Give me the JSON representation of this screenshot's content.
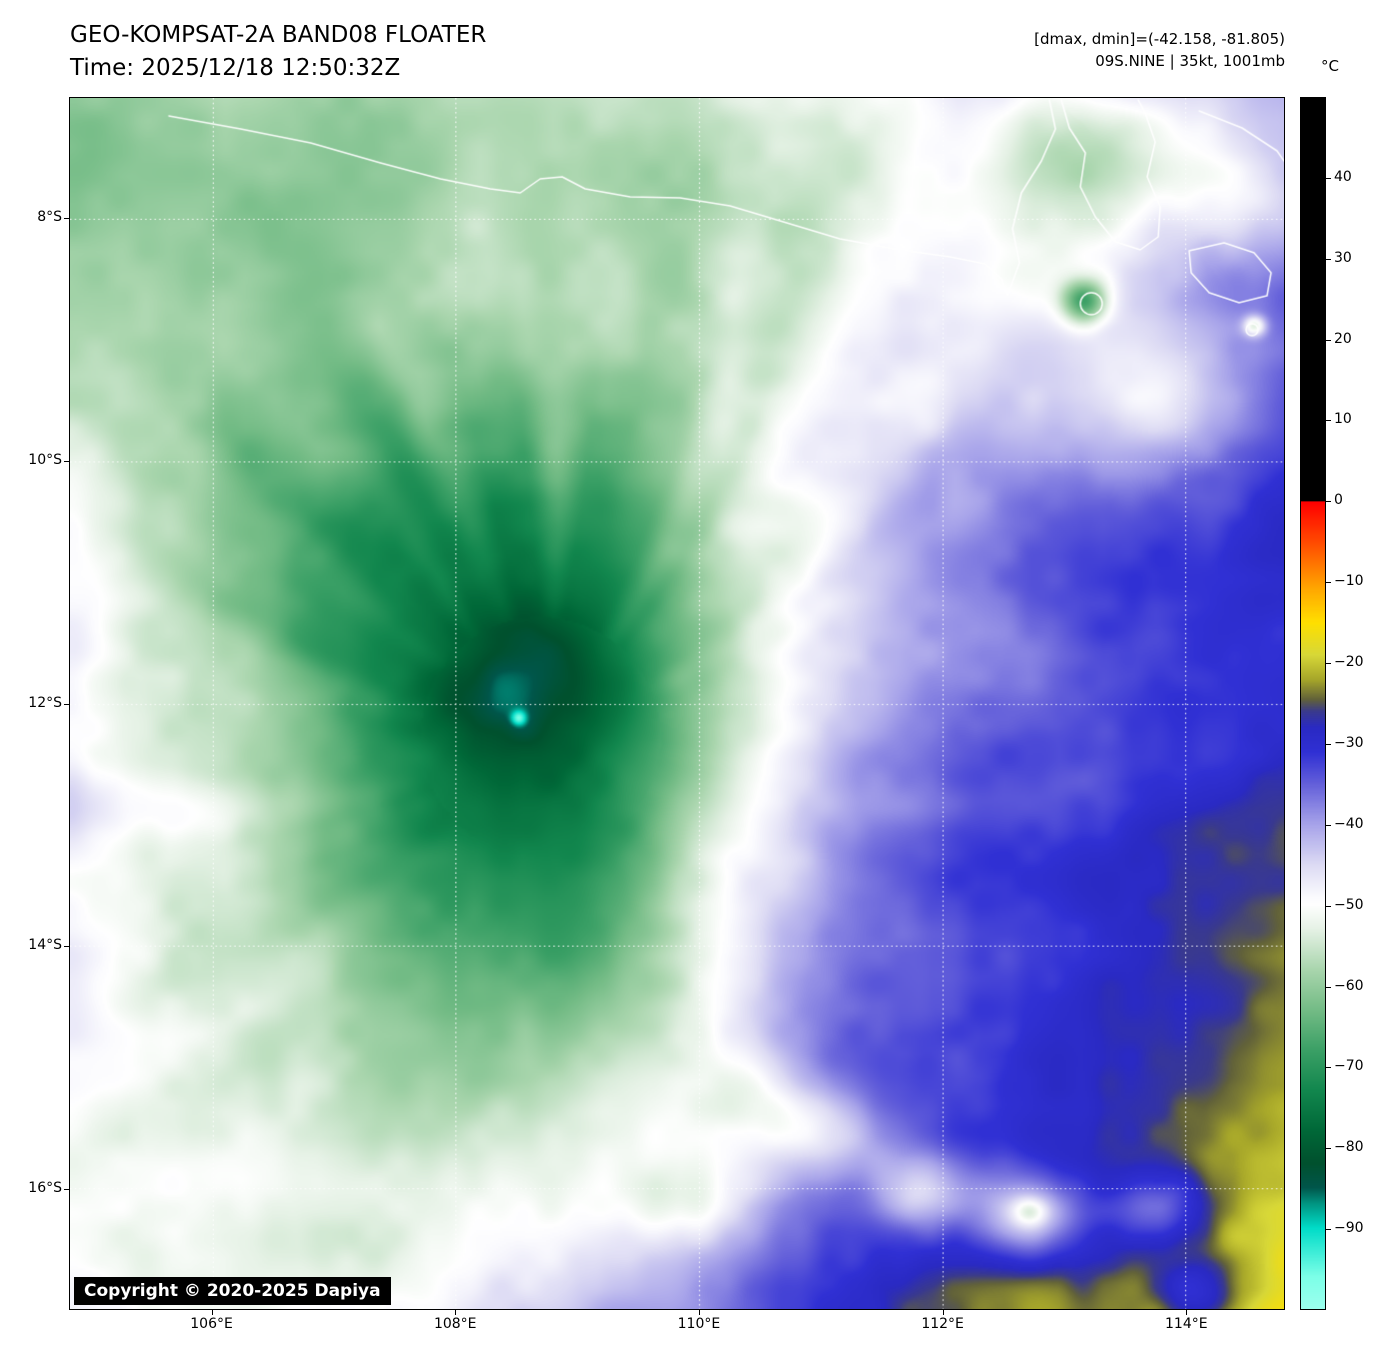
{
  "header": {
    "title": "GEO-KOMPSAT-2A BAND08 FLOATER",
    "time_line": "Time: 2025/12/18 12:50:32Z",
    "dmax_dmin": "[dmax, dmin]=(-42.158, -81.805)",
    "storm_info": "09S.NINE | 35kt, 1001mb"
  },
  "footer": {
    "copyright": "Copyright © 2020-2025 Dapiya"
  },
  "colorbar": {
    "unit_label": "°C"
  },
  "chart_data": {
    "type": "heatmap",
    "title": "GEO-KOMPSAT-2A BAND08 FLOATER",
    "satellite": "GEO-KOMPSAT-2A",
    "band": "BAND08",
    "product": "FLOATER",
    "time_utc": "2025/12/18 12:50:32Z",
    "dmax_c": -42.158,
    "dmin_c": -81.805,
    "storm": {
      "id": "09S.NINE",
      "intensity_kt": 35,
      "pressure_mb": 1001
    },
    "x_axis": {
      "tick_labels": [
        "106°E",
        "108°E",
        "110°E",
        "112°E",
        "114°E"
      ],
      "tick_values": [
        106,
        108,
        110,
        112,
        114
      ],
      "range_deg_e": [
        104.83,
        114.81
      ]
    },
    "y_axis": {
      "tick_labels": [
        "8°S",
        "10°S",
        "12°S",
        "14°S",
        "16°S"
      ],
      "tick_values": [
        8,
        10,
        12,
        14,
        16
      ],
      "range_deg_s": [
        7.0,
        17.0
      ]
    },
    "colorbar": {
      "unit": "°C",
      "tick_labels": [
        "40",
        "30",
        "20",
        "10",
        "0",
        "−10",
        "−20",
        "−30",
        "−40",
        "−50",
        "−60",
        "−70",
        "−80",
        "−90"
      ],
      "tick_values": [
        40,
        30,
        20,
        10,
        0,
        -10,
        -20,
        -30,
        -40,
        -50,
        -60,
        -70,
        -80,
        -90
      ],
      "scale_range": [
        50,
        -100
      ],
      "colormap_stops": [
        [
          50,
          "#000000"
        ],
        [
          0.001,
          "#000000"
        ],
        [
          0,
          "#ff0000"
        ],
        [
          -6,
          "#ff5a00"
        ],
        [
          -11,
          "#ffaa00"
        ],
        [
          -15,
          "#ffe000"
        ],
        [
          -19,
          "#d8d838"
        ],
        [
          -22,
          "#a8a82a"
        ],
        [
          -24.5,
          "#62623a"
        ],
        [
          -26,
          "#3a3a8e"
        ],
        [
          -28,
          "#2a2ac4"
        ],
        [
          -31,
          "#3030d4"
        ],
        [
          -35,
          "#6460da"
        ],
        [
          -40,
          "#a8a4ea"
        ],
        [
          -45,
          "#dddbf4"
        ],
        [
          -49,
          "#fbfbfe"
        ],
        [
          -50,
          "#ffffff"
        ],
        [
          -53,
          "#e6f2e6"
        ],
        [
          -58,
          "#aad6ae"
        ],
        [
          -63,
          "#74bc86"
        ],
        [
          -68,
          "#3ba066"
        ],
        [
          -73,
          "#12874e"
        ],
        [
          -78,
          "#006838"
        ],
        [
          -82,
          "#00512e"
        ],
        [
          -85,
          "#00564b"
        ],
        [
          -87,
          "#009582"
        ],
        [
          -90,
          "#00dcc8"
        ],
        [
          -96,
          "#7cffe8"
        ],
        [
          -100,
          "#9cffee"
        ]
      ]
    },
    "gridlines": {
      "style": "dotted",
      "color": "#ffffff"
    }
  }
}
